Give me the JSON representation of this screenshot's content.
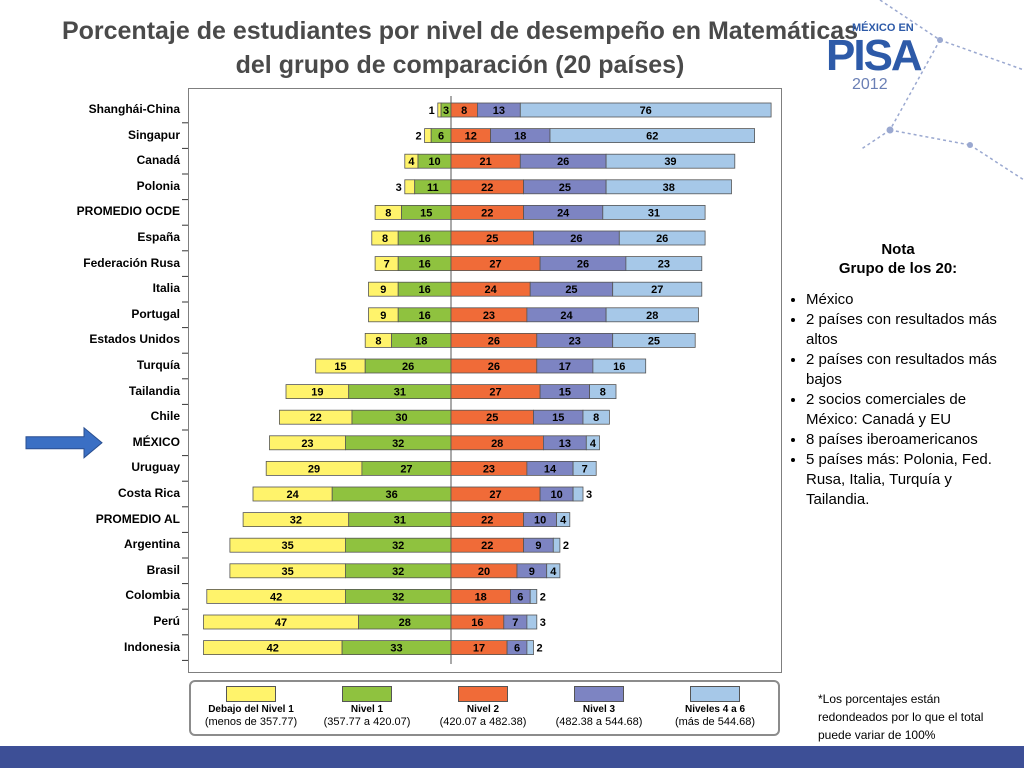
{
  "title_line1": "Porcentaje de estudiantes por nivel de desempeño en Matemáticas",
  "title_line2": "del grupo de comparación (20 países)",
  "logo": {
    "top": "MÉXICO EN",
    "main": "PISA",
    "year": "2012"
  },
  "chart_data": {
    "type": "bar",
    "orientation": "horizontal-stacked-diverging",
    "categories": [
      "Shanghái-China",
      "Singapur",
      "Canadá",
      "Polonia",
      "PROMEDIO OCDE",
      "España",
      "Federación Rusa",
      "Italia",
      "Portugal",
      "Estados Unidos",
      "Turquía",
      "Tailandia",
      "Chile",
      "MÉXICO",
      "Uruguay",
      "Costa Rica",
      "PROMEDIO AL",
      "Argentina",
      "Brasil",
      "Colombia",
      "Perú",
      "Indonesia"
    ],
    "series": [
      {
        "name": "Debajo del Nivel 1",
        "color": "#fff36b",
        "values": [
          1,
          2,
          4,
          3,
          8,
          8,
          7,
          9,
          9,
          8,
          15,
          19,
          22,
          23,
          29,
          24,
          32,
          35,
          35,
          42,
          47,
          42
        ]
      },
      {
        "name": "Nivel 1",
        "color": "#8fc23f",
        "values": [
          3,
          6,
          10,
          11,
          15,
          16,
          16,
          16,
          16,
          18,
          26,
          31,
          30,
          32,
          27,
          36,
          31,
          32,
          32,
          32,
          28,
          33
        ]
      },
      {
        "name": "Nivel 2",
        "color": "#f06b38",
        "values": [
          8,
          12,
          21,
          22,
          22,
          25,
          27,
          24,
          23,
          26,
          26,
          27,
          25,
          28,
          23,
          27,
          22,
          22,
          20,
          18,
          16,
          17
        ]
      },
      {
        "name": "Nivel 3",
        "color": "#7d84c2",
        "values": [
          13,
          18,
          26,
          25,
          24,
          26,
          26,
          25,
          24,
          23,
          17,
          15,
          15,
          13,
          14,
          10,
          10,
          9,
          9,
          6,
          7,
          6
        ]
      },
      {
        "name": "Niveles 4 a 6",
        "color": "#a6c8e8",
        "values": [
          76,
          62,
          39,
          38,
          31,
          26,
          23,
          27,
          28,
          25,
          16,
          8,
          8,
          4,
          7,
          3,
          4,
          2,
          4,
          2,
          3,
          2
        ]
      }
    ],
    "legend": [
      {
        "name": "Debajo del Nivel 1",
        "range": "(menos de 357.77)"
      },
      {
        "name": "Nivel 1",
        "range": "(357.77 a 420.07)"
      },
      {
        "name": "Nivel 2",
        "range": "(420.07 a 482.38)"
      },
      {
        "name": "Nivel 3",
        "range": "(482.38 a 544.68)"
      },
      {
        "name": "Niveles 4 a 6",
        "range": "(más de 544.68)"
      }
    ],
    "legend_position": "bottom",
    "highlight": "MÉXICO"
  },
  "note": {
    "title": "Nota",
    "subtitle": "Grupo de los 20:",
    "items": [
      "México",
      "2 países con resultados más altos",
      "2 países con resultados más bajos",
      "2 socios comerciales de México: Canadá y EU",
      "8 países iberoamericanos",
      "5 países más: Polonia, Fed. Rusa, Italia, Turquía y Tailandia."
    ]
  },
  "footnote": "*Los porcentajes están redondeados por lo que el total  puede variar de 100%",
  "colors": {
    "title": "#4a4a4a",
    "arrow": "#3a6fc4",
    "bottom_bar": "#3d4f96"
  }
}
